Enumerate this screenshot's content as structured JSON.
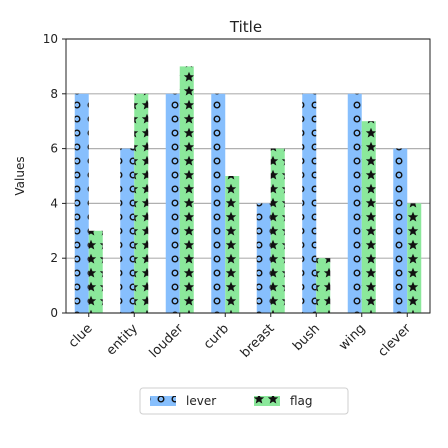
{
  "chart_data": {
    "type": "bar",
    "title": "Title",
    "xlabel": "",
    "ylabel": "Values",
    "ylim": [
      0,
      10
    ],
    "yticks": [
      0,
      2,
      4,
      6,
      8,
      10
    ],
    "grid": true,
    "legend_position": "bottom",
    "categories": [
      "clue",
      "entity",
      "louder",
      "curb",
      "breast",
      "bush",
      "wing",
      "clever"
    ],
    "series": [
      {
        "name": "lever",
        "values": [
          8,
          6,
          8,
          8,
          4,
          8,
          8,
          6
        ],
        "color": "#87bffd",
        "pattern": "circles"
      },
      {
        "name": "flag",
        "values": [
          3,
          8,
          9,
          5,
          6,
          2,
          7,
          4
        ],
        "color": "#8be89b",
        "pattern": "stars"
      }
    ]
  }
}
